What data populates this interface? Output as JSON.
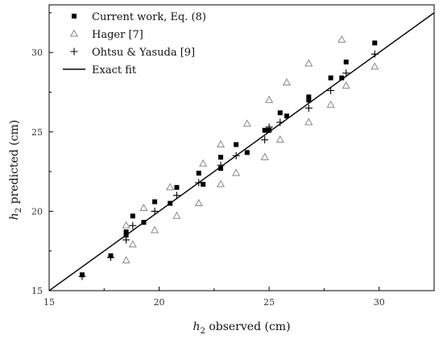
{
  "chart_data": {
    "type": "scatter",
    "xlabel_main": "h",
    "xlabel_sub": "2",
    "xlabel_rest": " observed (cm)",
    "ylabel_main": "h",
    "ylabel_sub": "2",
    "ylabel_rest": " predicted (cm)",
    "xlim": [
      15,
      32.5
    ],
    "ylim": [
      15,
      33
    ],
    "x_ticks": [
      15,
      20,
      25,
      30
    ],
    "y_ticks": [
      15,
      20,
      25,
      30
    ],
    "grid": false,
    "legend_position": "top-left",
    "series": [
      {
        "name": "Current work, Eq. (8)",
        "marker": "square",
        "color": "#000000",
        "points": [
          [
            16.5,
            16.0
          ],
          [
            17.8,
            17.2
          ],
          [
            18.5,
            18.5
          ],
          [
            18.5,
            18.7
          ],
          [
            18.8,
            19.7
          ],
          [
            19.3,
            19.3
          ],
          [
            19.8,
            20.6
          ],
          [
            20.5,
            20.5
          ],
          [
            20.8,
            21.5
          ],
          [
            21.8,
            22.4
          ],
          [
            22.0,
            21.7
          ],
          [
            22.8,
            22.7
          ],
          [
            22.8,
            23.4
          ],
          [
            23.5,
            24.2
          ],
          [
            24.0,
            23.7
          ],
          [
            24.8,
            25.1
          ],
          [
            25.0,
            25.1
          ],
          [
            25.5,
            26.2
          ],
          [
            25.8,
            26.0
          ],
          [
            26.8,
            27.0
          ],
          [
            26.8,
            27.2
          ],
          [
            27.8,
            28.4
          ],
          [
            28.3,
            28.4
          ],
          [
            28.5,
            29.4
          ],
          [
            29.8,
            30.6
          ]
        ]
      },
      {
        "name": "Hager [7]",
        "marker": "triangle",
        "color": "#888888",
        "points": [
          [
            18.5,
            16.9
          ],
          [
            18.5,
            19.1
          ],
          [
            18.8,
            17.9
          ],
          [
            19.3,
            20.2
          ],
          [
            19.8,
            18.8
          ],
          [
            20.5,
            21.5
          ],
          [
            20.8,
            19.7
          ],
          [
            21.8,
            20.5
          ],
          [
            22.0,
            23.0
          ],
          [
            22.8,
            21.7
          ],
          [
            22.8,
            24.2
          ],
          [
            23.5,
            22.4
          ],
          [
            24.0,
            25.5
          ],
          [
            24.8,
            23.4
          ],
          [
            25.0,
            27.0
          ],
          [
            25.5,
            24.5
          ],
          [
            25.8,
            28.1
          ],
          [
            26.8,
            25.6
          ],
          [
            26.8,
            29.3
          ],
          [
            27.8,
            26.7
          ],
          [
            28.3,
            30.8
          ],
          [
            28.5,
            27.9
          ],
          [
            29.8,
            29.1
          ]
        ]
      },
      {
        "name": "Ohtsu & Yasuda [9]",
        "marker": "plus",
        "color": "#000000",
        "points": [
          [
            16.5,
            15.9
          ],
          [
            17.8,
            17.1
          ],
          [
            18.5,
            18.2
          ],
          [
            18.8,
            19.1
          ],
          [
            19.8,
            20.0
          ],
          [
            20.8,
            21.0
          ],
          [
            21.8,
            21.8
          ],
          [
            22.8,
            22.9
          ],
          [
            23.5,
            23.5
          ],
          [
            24.8,
            24.5
          ],
          [
            25.0,
            25.3
          ],
          [
            25.5,
            25.6
          ],
          [
            26.8,
            26.5
          ],
          [
            27.8,
            27.6
          ],
          [
            28.5,
            28.7
          ],
          [
            29.8,
            29.9
          ]
        ]
      },
      {
        "name": "Exact fit",
        "marker": "line",
        "color": "#000000",
        "points": [
          [
            15,
            15
          ],
          [
            32.5,
            32.5
          ]
        ]
      }
    ]
  }
}
